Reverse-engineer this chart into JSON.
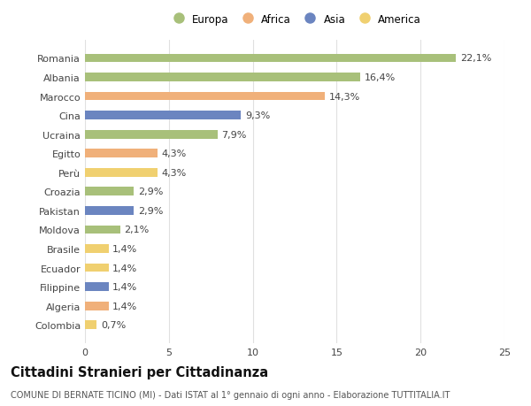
{
  "countries": [
    "Romania",
    "Albania",
    "Marocco",
    "Cina",
    "Ucraina",
    "Egitto",
    "Perù",
    "Croazia",
    "Pakistan",
    "Moldova",
    "Brasile",
    "Ecuador",
    "Filippine",
    "Algeria",
    "Colombia"
  ],
  "values": [
    22.1,
    16.4,
    14.3,
    9.3,
    7.9,
    4.3,
    4.3,
    2.9,
    2.9,
    2.1,
    1.4,
    1.4,
    1.4,
    1.4,
    0.7
  ],
  "labels": [
    "22,1%",
    "16,4%",
    "14,3%",
    "9,3%",
    "7,9%",
    "4,3%",
    "4,3%",
    "2,9%",
    "2,9%",
    "2,1%",
    "1,4%",
    "1,4%",
    "1,4%",
    "1,4%",
    "0,7%"
  ],
  "continents": [
    "Europa",
    "Europa",
    "Africa",
    "Asia",
    "Europa",
    "Africa",
    "America",
    "Europa",
    "Asia",
    "Europa",
    "America",
    "America",
    "Asia",
    "Africa",
    "America"
  ],
  "continent_colors": {
    "Europa": "#a8c07a",
    "Africa": "#f0b07a",
    "Asia": "#6b85c0",
    "America": "#f0d070"
  },
  "legend_order": [
    "Europa",
    "Africa",
    "Asia",
    "America"
  ],
  "xlim": [
    0,
    25
  ],
  "xticks": [
    0,
    5,
    10,
    15,
    20,
    25
  ],
  "title": "Cittadini Stranieri per Cittadinanza",
  "subtitle": "COMUNE DI BERNATE TICINO (MI) - Dati ISTAT al 1° gennaio di ogni anno - Elaborazione TUTTITALIA.IT",
  "background_color": "#ffffff",
  "grid_color": "#e0e0e0",
  "bar_height": 0.45,
  "label_fontsize": 8,
  "title_fontsize": 10.5,
  "subtitle_fontsize": 7,
  "tick_fontsize": 8
}
